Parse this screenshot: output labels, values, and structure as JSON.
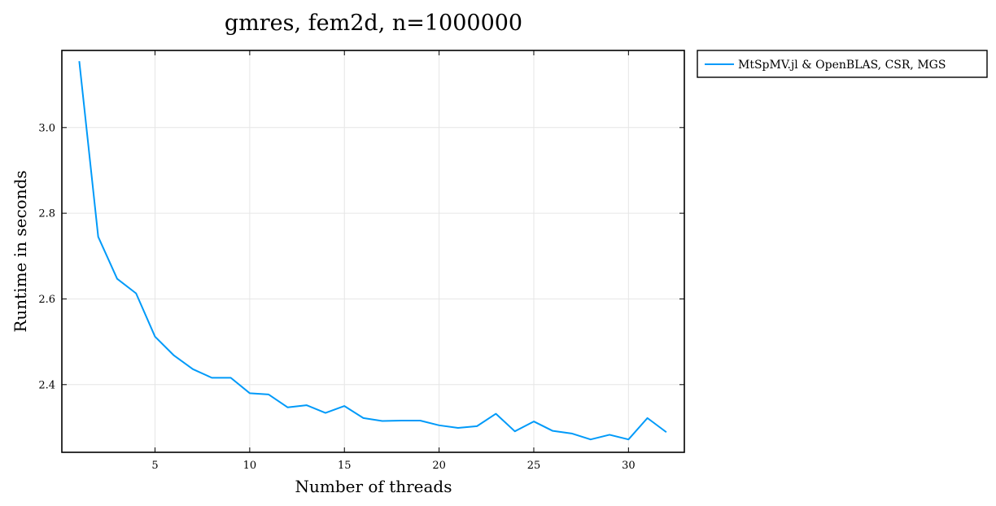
{
  "chart_data": {
    "type": "line",
    "title": "gmres, fem2d, n=1000000",
    "xlabel": "Number of threads",
    "ylabel": "Runtime in seconds",
    "xlim": [
      0.08,
      32.95
    ],
    "ylim": [
      2.242,
      3.18
    ],
    "xticks": [
      5,
      10,
      15,
      20,
      25,
      30
    ],
    "xtick_labels": [
      "5",
      "10",
      "15",
      "20",
      "25",
      "30"
    ],
    "yticks": [
      2.4,
      2.6,
      2.8,
      3.0
    ],
    "ytick_labels": [
      "2.4",
      "2.6",
      "2.8",
      "3.0"
    ],
    "grid": true,
    "legend_position": "outside-top-right",
    "series": [
      {
        "name": "MtSpMV.jl & OpenBLAS, CSR, MGS",
        "color": "#009af9",
        "x": [
          1,
          2,
          3,
          4,
          5,
          6,
          7,
          8,
          9,
          10,
          11,
          12,
          13,
          14,
          15,
          16,
          17,
          18,
          19,
          20,
          21,
          22,
          23,
          24,
          25,
          26,
          27,
          28,
          29,
          30,
          31,
          32
        ],
        "y": [
          3.155,
          2.745,
          2.647,
          2.613,
          2.512,
          2.468,
          2.436,
          2.416,
          2.416,
          2.38,
          2.377,
          2.347,
          2.352,
          2.334,
          2.35,
          2.322,
          2.315,
          2.316,
          2.316,
          2.305,
          2.299,
          2.303,
          2.332,
          2.291,
          2.314,
          2.292,
          2.286,
          2.272,
          2.283,
          2.272,
          2.322,
          2.289
        ]
      }
    ]
  }
}
